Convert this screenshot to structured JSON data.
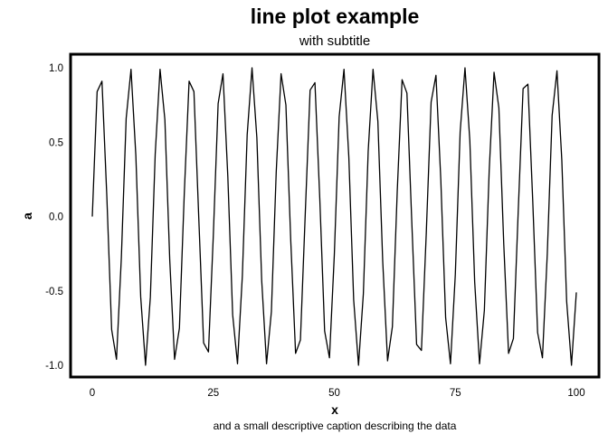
{
  "chart_data": {
    "type": "line",
    "title": "line plot example",
    "subtitle": "with subtitle",
    "xlabel": "x",
    "ylabel": "a",
    "caption": "and a small descriptive caption describing the data",
    "xlim": [
      0,
      100
    ],
    "ylim": [
      -1.0,
      1.0
    ],
    "x_ticks": [
      0,
      25,
      50,
      75,
      100
    ],
    "x_tick_labels": [
      "0",
      "25",
      "50",
      "75",
      "100"
    ],
    "y_ticks": [
      -1.0,
      -0.5,
      0.0,
      0.5,
      1.0
    ],
    "y_tick_labels": [
      "-1.0",
      "-0.5",
      "0.0",
      "0.5",
      "1.0"
    ],
    "grid": false,
    "legend": "none",
    "series": [
      {
        "color": "#000000",
        "x": [
          0,
          1,
          2,
          3,
          4,
          5,
          6,
          7,
          8,
          9,
          10,
          11,
          12,
          13,
          14,
          15,
          16,
          17,
          18,
          19,
          20,
          21,
          22,
          23,
          24,
          25,
          26,
          27,
          28,
          29,
          30,
          31,
          32,
          33,
          34,
          35,
          36,
          37,
          38,
          39,
          40,
          41,
          42,
          43,
          44,
          45,
          46,
          47,
          48,
          49,
          50,
          51,
          52,
          53,
          54,
          55,
          56,
          57,
          58,
          59,
          60,
          61,
          62,
          63,
          64,
          65,
          66,
          67,
          68,
          69,
          70,
          71,
          72,
          73,
          74,
          75,
          76,
          77,
          78,
          79,
          80,
          81,
          82,
          83,
          84,
          85,
          86,
          87,
          88,
          89,
          90,
          91,
          92,
          93,
          94,
          95,
          96,
          97,
          98,
          99,
          100
        ],
        "y": [
          0.0,
          0.84,
          0.91,
          0.14,
          -0.76,
          -0.96,
          -0.28,
          0.66,
          0.99,
          0.41,
          -0.54,
          -1.0,
          -0.54,
          0.42,
          0.99,
          0.65,
          -0.29,
          -0.96,
          -0.75,
          0.15,
          0.91,
          0.84,
          -0.01,
          -0.85,
          -0.91,
          -0.13,
          0.76,
          0.96,
          0.27,
          -0.66,
          -0.99,
          -0.4,
          0.55,
          1.0,
          0.53,
          -0.43,
          -0.99,
          -0.64,
          0.3,
          0.96,
          0.75,
          -0.16,
          -0.92,
          -0.83,
          0.02,
          0.85,
          0.9,
          0.12,
          -0.77,
          -0.95,
          -0.26,
          0.67,
          0.99,
          0.4,
          -0.56,
          -1.0,
          -0.52,
          0.44,
          0.99,
          0.64,
          -0.3,
          -0.97,
          -0.74,
          0.17,
          0.92,
          0.83,
          -0.03,
          -0.86,
          -0.9,
          -0.11,
          0.77,
          0.95,
          0.25,
          -0.68,
          -0.99,
          -0.39,
          0.57,
          1.0,
          0.51,
          -0.44,
          -0.99,
          -0.63,
          0.31,
          0.97,
          0.73,
          -0.18,
          -0.92,
          -0.82,
          0.04,
          0.86,
          0.89,
          0.1,
          -0.78,
          -0.95,
          -0.25,
          0.68,
          0.98,
          0.38,
          -0.57,
          -1.0,
          -0.51
        ]
      }
    ]
  }
}
